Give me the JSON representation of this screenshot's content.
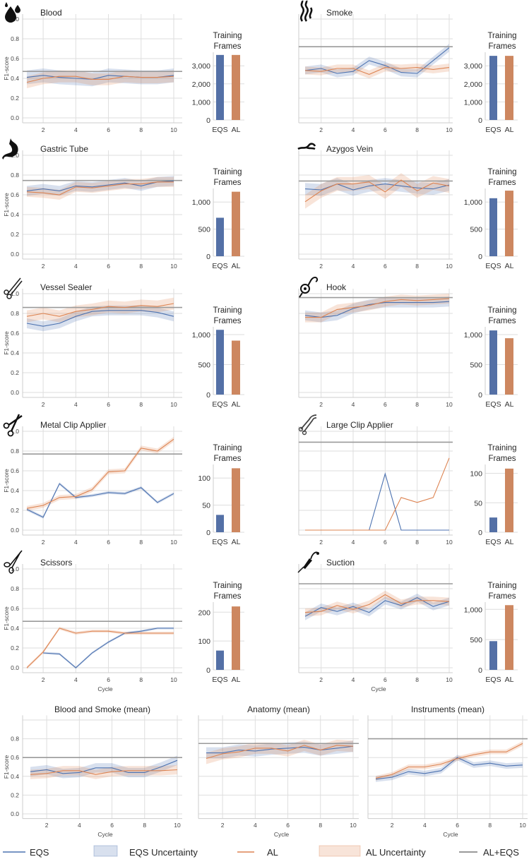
{
  "colors": {
    "eqs": "#4c72b0",
    "al": "#dd8452",
    "ref": "#9a9a9a",
    "eqs_bar": "#5470a6",
    "al_bar": "#cd8760",
    "grid": "#dedede"
  },
  "labels": {
    "y_axis": "F1-score",
    "x_axis": "Cycle",
    "bar_title_1": "Training",
    "bar_title_2": "Frames",
    "bar_eqs": "EQS",
    "bar_al": "AL"
  },
  "legend": [
    {
      "key": "eqs",
      "label": "EQS",
      "icon": "line-swatch"
    },
    {
      "key": "eqs_unc",
      "label": "EQS Uncertainty",
      "icon": "band-swatch"
    },
    {
      "key": "al",
      "label": "AL",
      "icon": "line-swatch"
    },
    {
      "key": "al_unc",
      "label": "AL Uncertainty",
      "icon": "band-swatch"
    },
    {
      "key": "ref",
      "label": "AL+EQS",
      "icon": "line-swatch"
    }
  ],
  "chart_data": [
    {
      "type": "line",
      "title": "Blood",
      "icon": "blood-drops-icon",
      "x": [
        1,
        2,
        3,
        4,
        5,
        6,
        7,
        8,
        9,
        10
      ],
      "ylim": [
        0,
        1
      ],
      "yticks": [
        0,
        0.2,
        0.4,
        0.6,
        0.8,
        1.0
      ],
      "ylabel": "F1-score",
      "series": [
        {
          "name": "EQS",
          "values": [
            0.41,
            0.43,
            0.41,
            0.4,
            0.39,
            0.43,
            0.42,
            0.41,
            0.41,
            0.43
          ],
          "uncertainty": 0.07
        },
        {
          "name": "AL",
          "values": [
            0.36,
            0.4,
            0.42,
            0.42,
            0.39,
            0.39,
            0.42,
            0.41,
            0.41,
            0.42
          ],
          "uncertainty": 0.06
        }
      ],
      "reference_al_eqs": 0.47,
      "training_frames": {
        "EQS": 3600,
        "AL": 3600,
        "ylim": [
          0,
          3750
        ],
        "yticks": [
          0,
          1000,
          2000,
          3000
        ],
        "yticklabels": [
          "0",
          "1,000",
          "2,000",
          "3,000"
        ]
      }
    },
    {
      "type": "line",
      "title": "Smoke",
      "icon": "smoke-icon",
      "x": [
        1,
        2,
        3,
        4,
        5,
        6,
        7,
        8,
        9,
        10
      ],
      "ylim": [
        0,
        1
      ],
      "yticks": [
        0,
        0.2,
        0.4,
        0.6,
        0.8,
        1.0
      ],
      "series": [
        {
          "name": "EQS",
          "values": [
            0.48,
            0.5,
            0.45,
            0.47,
            0.58,
            0.53,
            0.46,
            0.45,
            0.58,
            0.71
          ],
          "uncertainty": 0.04
        },
        {
          "name": "AL",
          "values": [
            0.48,
            0.47,
            0.5,
            0.5,
            0.44,
            0.51,
            0.5,
            0.51,
            0.49,
            0.51
          ],
          "uncertainty": 0.04
        }
      ],
      "reference_al_eqs": 0.72,
      "training_frames": {
        "EQS": 3550,
        "AL": 3550,
        "ylim": [
          0,
          3750
        ],
        "yticks": [
          0,
          1000,
          2000,
          3000
        ],
        "yticklabels": [
          "0",
          "1,000",
          "2,000",
          "3,000"
        ]
      }
    },
    {
      "type": "line",
      "title": "Gastric Tube",
      "icon": "stomach-icon",
      "x": [
        1,
        2,
        3,
        4,
        5,
        6,
        7,
        8,
        9,
        10
      ],
      "ylim": [
        0,
        1
      ],
      "yticks": [
        0,
        0.2,
        0.4,
        0.6,
        0.8,
        1.0
      ],
      "ylabel": "F1-score",
      "series": [
        {
          "name": "EQS",
          "values": [
            0.64,
            0.66,
            0.64,
            0.69,
            0.68,
            0.7,
            0.72,
            0.69,
            0.73,
            0.74
          ],
          "uncertainty": 0.05
        },
        {
          "name": "AL",
          "values": [
            0.63,
            0.62,
            0.6,
            0.68,
            0.67,
            0.69,
            0.71,
            0.71,
            0.73,
            0.73
          ],
          "uncertainty": 0.05
        }
      ],
      "reference_al_eqs": 0.745,
      "training_frames": {
        "EQS": 710,
        "AL": 1190,
        "ylim": [
          0,
          1250
        ],
        "yticks": [
          0,
          500,
          1000
        ],
        "yticklabels": [
          "0",
          "500",
          "1,000"
        ]
      }
    },
    {
      "type": "line",
      "title": "Azygos Vein",
      "icon": "vein-icon",
      "x": [
        1,
        2,
        3,
        4,
        5,
        6,
        7,
        8,
        9,
        10
      ],
      "ylim": [
        0,
        1
      ],
      "yticks": [
        0,
        0.2,
        0.4,
        0.6,
        0.8,
        1.0
      ],
      "series": [
        {
          "name": "EQS",
          "values": [
            0.66,
            0.65,
            0.71,
            0.65,
            0.69,
            0.71,
            0.69,
            0.67,
            0.66,
            0.7
          ],
          "uncertainty": 0.06
        },
        {
          "name": "AL",
          "values": [
            0.53,
            0.64,
            0.71,
            0.71,
            0.73,
            0.63,
            0.75,
            0.64,
            0.72,
            0.69
          ],
          "uncertainty": 0.07
        }
      ],
      "reference_al_eqs": 0.74,
      "training_frames": {
        "EQS": 1070,
        "AL": 1210,
        "ylim": [
          0,
          1250
        ],
        "yticks": [
          0,
          500,
          1000
        ],
        "yticklabels": [
          "0",
          "500",
          "1,000"
        ]
      }
    },
    {
      "type": "line",
      "title": "Vessel Sealer",
      "icon": "vessel-sealer-icon",
      "x": [
        1,
        2,
        3,
        4,
        5,
        6,
        7,
        8,
        9,
        10
      ],
      "ylim": [
        0,
        1
      ],
      "yticks": [
        0,
        0.2,
        0.4,
        0.6,
        0.8,
        1.0
      ],
      "ylabel": "F1-score",
      "series": [
        {
          "name": "EQS",
          "values": [
            0.7,
            0.67,
            0.7,
            0.77,
            0.82,
            0.83,
            0.83,
            0.83,
            0.81,
            0.77
          ],
          "uncertainty": 0.05
        },
        {
          "name": "AL",
          "values": [
            0.77,
            0.8,
            0.77,
            0.82,
            0.84,
            0.87,
            0.86,
            0.88,
            0.87,
            0.9
          ],
          "uncertainty": 0.06
        }
      ],
      "reference_al_eqs": 0.86,
      "training_frames": {
        "EQS": 1080,
        "AL": 900,
        "ylim": [
          0,
          1130
        ],
        "yticks": [
          0,
          500,
          1000
        ],
        "yticklabels": [
          "0",
          "500",
          "1,000"
        ]
      }
    },
    {
      "type": "line",
      "title": "Hook",
      "icon": "hook-icon",
      "x": [
        1,
        2,
        3,
        4,
        5,
        6,
        7,
        8,
        9,
        10
      ],
      "ylim": [
        0,
        1
      ],
      "yticks": [
        0,
        0.2,
        0.4,
        0.6,
        0.8,
        1.0
      ],
      "series": [
        {
          "name": "EQS",
          "values": [
            0.78,
            0.76,
            0.78,
            0.85,
            0.89,
            0.91,
            0.91,
            0.91,
            0.91,
            0.92
          ],
          "uncertainty": 0.05
        },
        {
          "name": "AL",
          "values": [
            0.76,
            0.76,
            0.84,
            0.86,
            0.88,
            0.92,
            0.94,
            0.93,
            0.94,
            0.95
          ],
          "uncertainty": 0.05
        }
      ],
      "reference_al_eqs": 0.96,
      "training_frames": {
        "EQS": 1070,
        "AL": 940,
        "ylim": [
          0,
          1130
        ],
        "yticks": [
          0,
          500,
          1000
        ],
        "yticklabels": [
          "0",
          "500",
          "1,000"
        ]
      }
    },
    {
      "type": "line",
      "title": "Metal Clip Applier",
      "icon": "metal-clip-applier-icon",
      "x": [
        1,
        2,
        3,
        4,
        5,
        6,
        7,
        8,
        9,
        10
      ],
      "ylim": [
        0,
        1
      ],
      "yticks": [
        0,
        0.2,
        0.4,
        0.6,
        0.8,
        1.0
      ],
      "ylabel": "F1-score",
      "series": [
        {
          "name": "EQS",
          "values": [
            0.21,
            0.13,
            0.47,
            0.33,
            0.35,
            0.38,
            0.37,
            0.43,
            0.28,
            0.37
          ],
          "uncertainty": 0.015
        },
        {
          "name": "AL",
          "values": [
            0.22,
            0.25,
            0.33,
            0.34,
            0.41,
            0.59,
            0.6,
            0.83,
            0.8,
            0.92
          ],
          "uncertainty": 0.025
        }
      ],
      "reference_al_eqs": 0.77,
      "training_frames": {
        "EQS": 32,
        "AL": 118,
        "ylim": [
          0,
          125
        ],
        "yticks": [
          0,
          50,
          100
        ],
        "yticklabels": [
          "0",
          "50",
          "100"
        ]
      }
    },
    {
      "type": "line",
      "title": "Large Clip Applier",
      "icon": "large-clip-applier-icon",
      "x": [
        1,
        2,
        3,
        4,
        5,
        6,
        7,
        8,
        9,
        10
      ],
      "ylim": [
        0,
        1
      ],
      "yticks": [
        0,
        0.2,
        0.4,
        0.6,
        0.8,
        1.0
      ],
      "series": [
        {
          "name": "EQS",
          "values": [
            0,
            0,
            0,
            0,
            0,
            0.57,
            0,
            0,
            0,
            0
          ],
          "uncertainty": 0.003
        },
        {
          "name": "AL",
          "values": [
            0,
            0,
            0,
            0,
            0,
            0,
            0.33,
            0.28,
            0.33,
            0.73
          ],
          "uncertainty": 0.003
        }
      ],
      "reference_al_eqs": 0.89,
      "training_frames": {
        "EQS": 25,
        "AL": 108,
        "ylim": [
          0,
          115
        ],
        "yticks": [
          0,
          50,
          100
        ],
        "yticklabels": [
          "0",
          "50",
          "100"
        ]
      }
    },
    {
      "type": "line",
      "title": "Scissors",
      "icon": "scissors-icon",
      "x": [
        1,
        2,
        3,
        4,
        5,
        6,
        7,
        8,
        9,
        10
      ],
      "ylim": [
        0,
        1
      ],
      "yticks": [
        0,
        0.2,
        0.4,
        0.6,
        0.8,
        1.0
      ],
      "ylabel": "F1-score",
      "xlabel": "Cycle",
      "series": [
        {
          "name": "EQS",
          "values": [
            null,
            0.15,
            0.14,
            0.0,
            0.15,
            0.26,
            0.35,
            0.37,
            0.4,
            0.4
          ],
          "uncertainty": 0.012
        },
        {
          "name": "AL",
          "values": [
            0.0,
            0.16,
            0.4,
            0.35,
            0.37,
            0.37,
            0.35,
            0.35,
            0.35,
            0.35
          ],
          "uncertainty": 0.015
        }
      ],
      "reference_al_eqs": 0.47,
      "training_frames": {
        "EQS": 67,
        "AL": 220,
        "ylim": [
          0,
          235
        ],
        "yticks": [
          0,
          100,
          200
        ],
        "yticklabels": [
          "0",
          "100",
          "200"
        ]
      }
    },
    {
      "type": "line",
      "title": "Suction",
      "icon": "suction-icon",
      "x": [
        1,
        2,
        3,
        4,
        5,
        6,
        7,
        8,
        9,
        10
      ],
      "ylim": [
        0,
        1
      ],
      "yticks": [
        0,
        0.2,
        0.4,
        0.6,
        0.8,
        1.0
      ],
      "xlabel": "Cycle",
      "series": [
        {
          "name": "EQS",
          "values": [
            0.52,
            0.61,
            0.57,
            0.62,
            0.56,
            0.68,
            0.63,
            0.71,
            0.62,
            0.67
          ],
          "uncertainty": 0.04
        },
        {
          "name": "AL",
          "values": [
            0.56,
            0.57,
            0.63,
            0.59,
            0.64,
            0.74,
            0.65,
            0.68,
            0.68,
            0.67
          ],
          "uncertainty": 0.04
        }
      ],
      "reference_al_eqs": 0.85,
      "training_frames": {
        "EQS": 475,
        "AL": 1070,
        "ylim": [
          0,
          1120
        ],
        "yticks": [
          0,
          500,
          1000
        ],
        "yticklabels": [
          "0",
          "500",
          "1,000"
        ]
      }
    },
    {
      "type": "line",
      "title": "Blood and Smoke (mean)",
      "x": [
        1,
        2,
        3,
        4,
        5,
        6,
        7,
        8,
        9,
        10
      ],
      "ylim": [
        0,
        1
      ],
      "yticks": [
        0,
        0.2,
        0.4,
        0.6,
        0.8
      ],
      "ylabel": "F1-score",
      "xlabel": "Cycle",
      "series": [
        {
          "name": "EQS",
          "values": [
            0.45,
            0.47,
            0.43,
            0.44,
            0.49,
            0.49,
            0.44,
            0.44,
            0.5,
            0.57
          ],
          "uncertainty": 0.05
        },
        {
          "name": "AL",
          "values": [
            0.42,
            0.43,
            0.46,
            0.46,
            0.42,
            0.45,
            0.46,
            0.46,
            0.46,
            0.47
          ],
          "uncertainty": 0.05
        }
      ],
      "reference_al_eqs": 0.6
    },
    {
      "type": "line",
      "title": "Anatomy (mean)",
      "x": [
        1,
        2,
        3,
        4,
        5,
        6,
        7,
        8,
        9,
        10
      ],
      "ylim": [
        0,
        1
      ],
      "yticks": [
        0,
        0.2,
        0.4,
        0.6,
        0.8
      ],
      "xlabel": "Cycle",
      "series": [
        {
          "name": "EQS",
          "values": [
            0.65,
            0.65,
            0.68,
            0.67,
            0.69,
            0.7,
            0.71,
            0.68,
            0.7,
            0.72
          ],
          "uncertainty": 0.06
        },
        {
          "name": "AL",
          "values": [
            0.59,
            0.64,
            0.66,
            0.7,
            0.7,
            0.67,
            0.73,
            0.68,
            0.73,
            0.72
          ],
          "uncertainty": 0.06
        }
      ],
      "reference_al_eqs": 0.75
    },
    {
      "type": "line",
      "title": "Instruments (mean)",
      "x": [
        1,
        2,
        3,
        4,
        5,
        6,
        7,
        8,
        9,
        10
      ],
      "ylim": [
        0,
        1
      ],
      "yticks": [
        0,
        0.2,
        0.4,
        0.6,
        0.8
      ],
      "xlabel": "Cycle",
      "series": [
        {
          "name": "EQS",
          "values": [
            0.37,
            0.39,
            0.45,
            0.43,
            0.46,
            0.6,
            0.52,
            0.54,
            0.51,
            0.52
          ],
          "uncertainty": 0.03
        },
        {
          "name": "AL",
          "values": [
            0.38,
            0.42,
            0.5,
            0.5,
            0.53,
            0.59,
            0.63,
            0.66,
            0.66,
            0.75
          ],
          "uncertainty": 0.025
        }
      ],
      "reference_al_eqs": 0.8
    }
  ]
}
